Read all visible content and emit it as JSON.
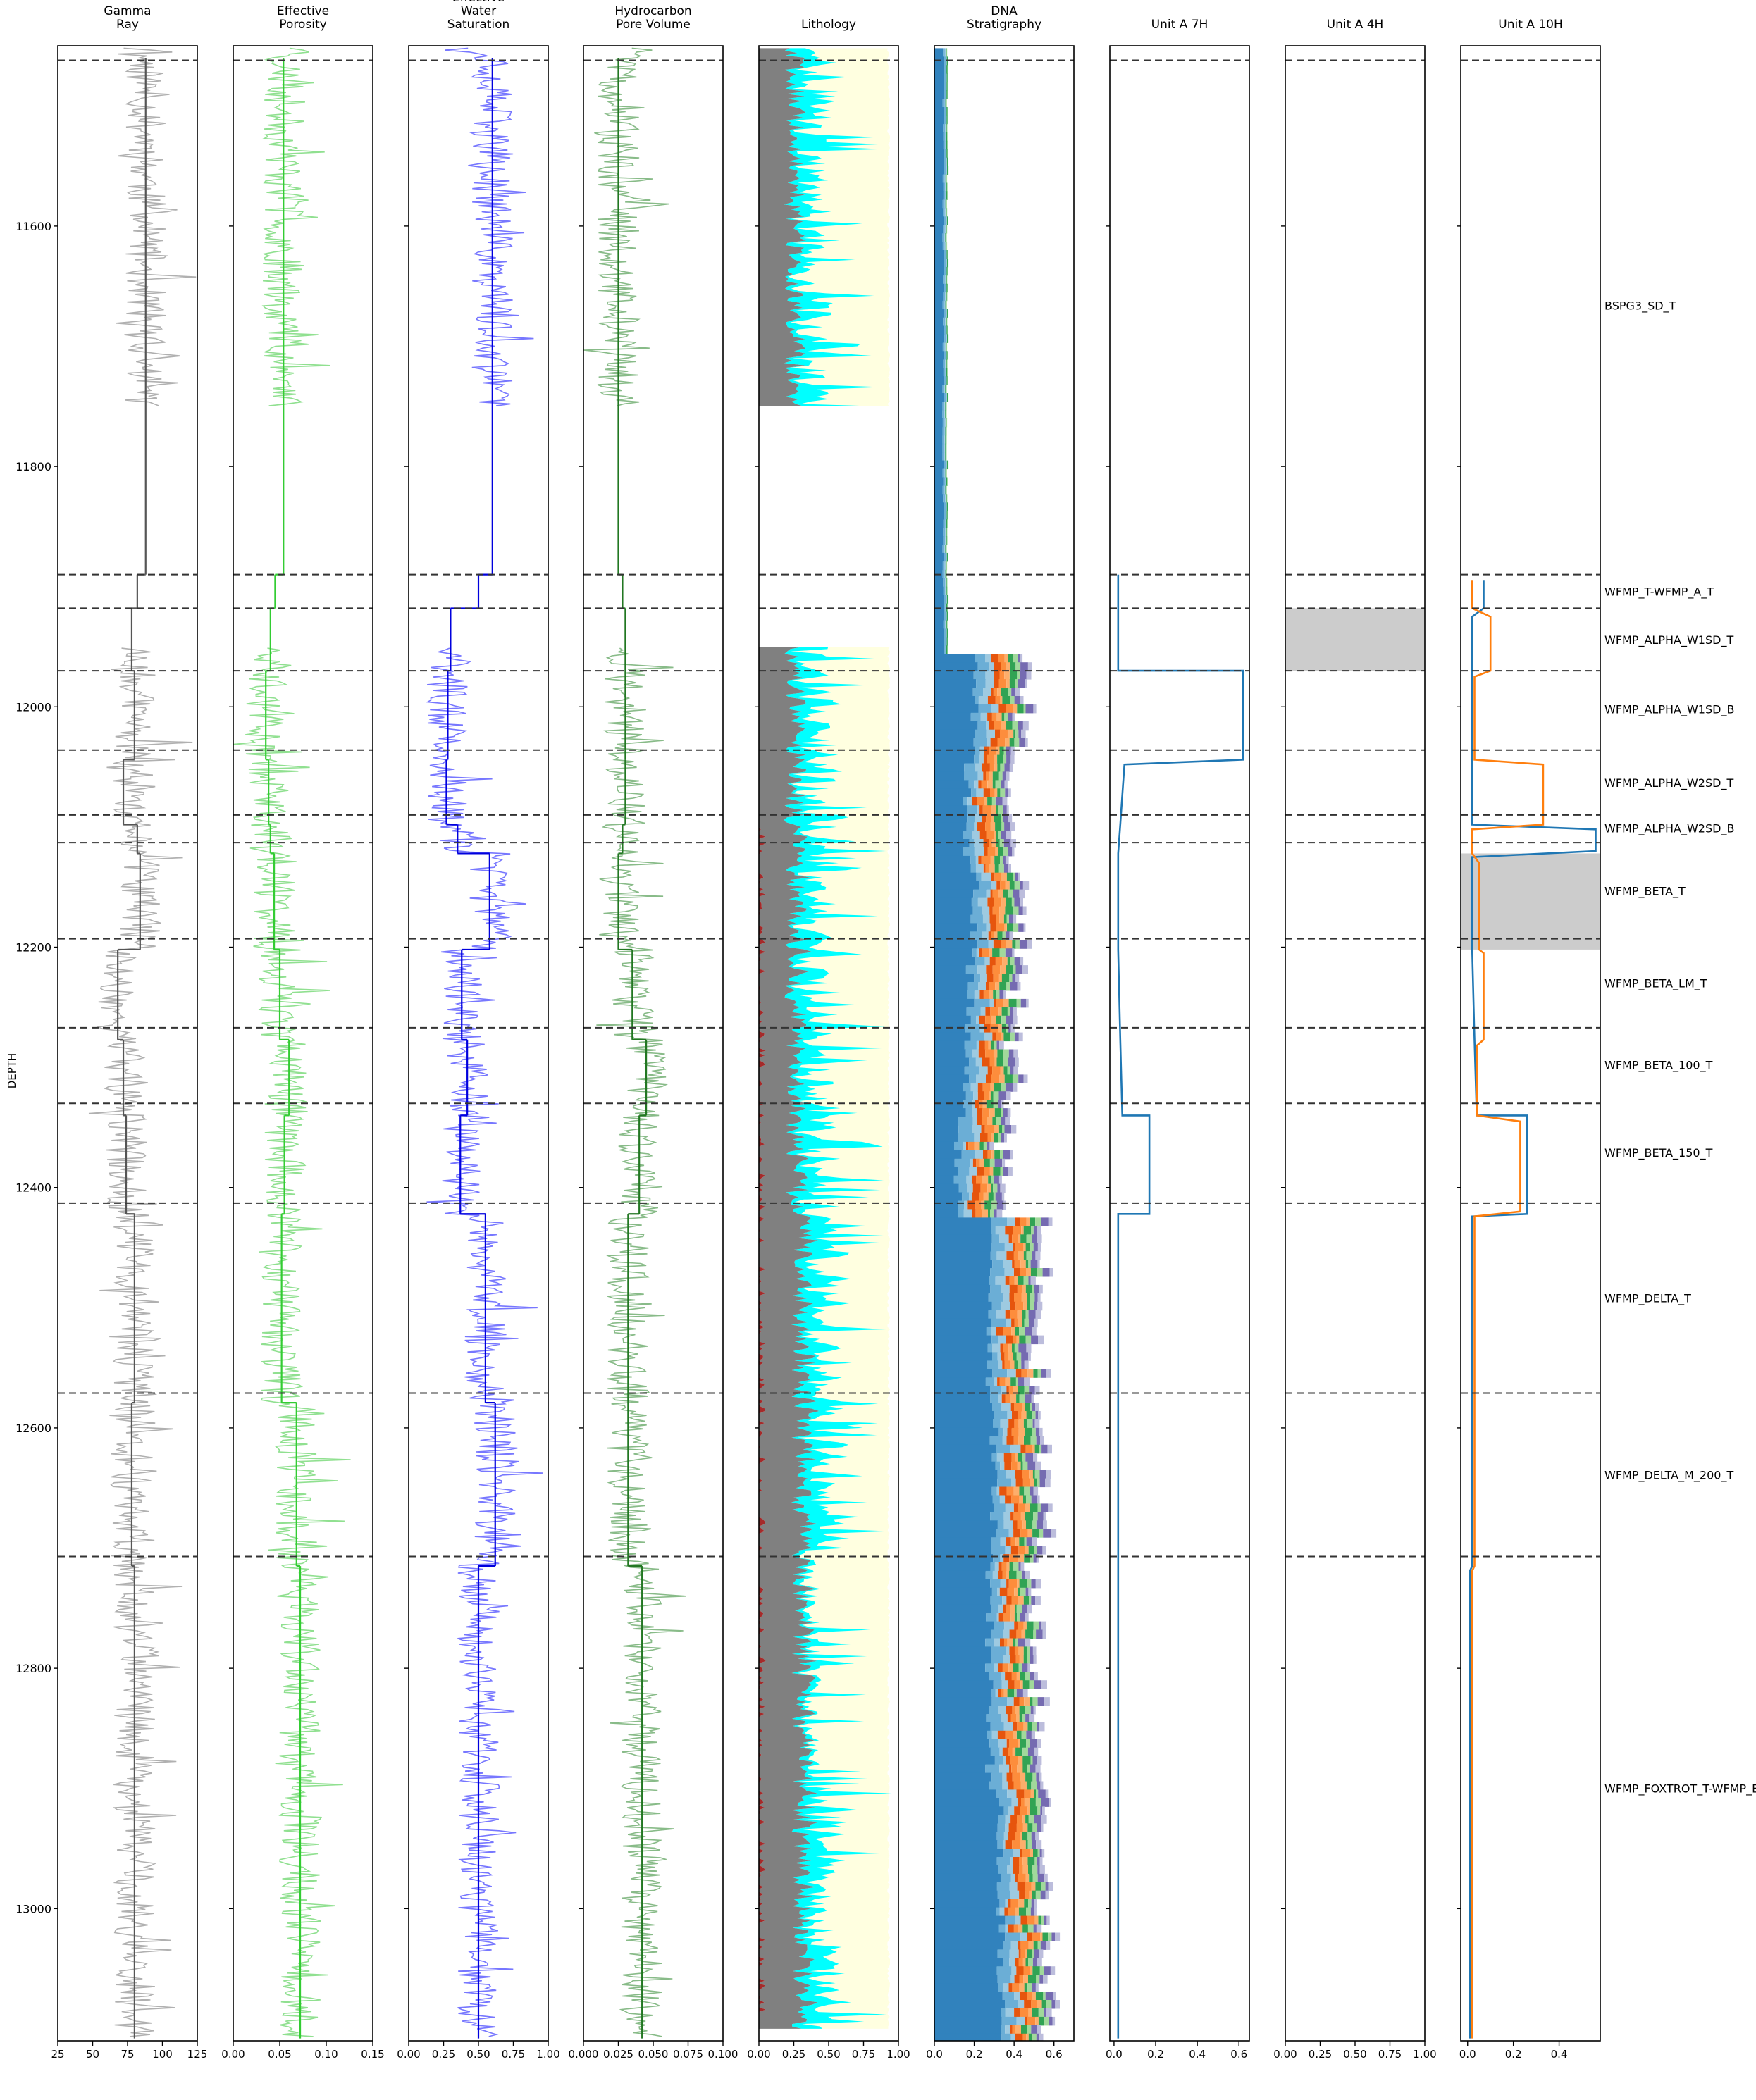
{
  "chart_data": {
    "type": "well-log",
    "y_axis": {
      "label": "DEPTH",
      "range": [
        11450,
        13110
      ],
      "ticks": [
        11600,
        11800,
        12000,
        12200,
        12400,
        12600,
        12800,
        13000
      ],
      "inverted": true
    },
    "tracks": [
      {
        "title": [
          "Gamma",
          "Ray"
        ],
        "xlim": [
          25,
          125
        ],
        "xticks": [
          25,
          50,
          75,
          100,
          125
        ],
        "xtick_labels": [
          "25",
          "50",
          "75",
          "100",
          "125"
        ],
        "kind": "curve",
        "curve_color": "#b0b0b0",
        "mean_color": "#555555",
        "seed": 11,
        "gaps": [
          [
            11750,
            11950
          ]
        ],
        "means": [
          [
            11460,
            11890,
            88
          ],
          [
            11890,
            11918,
            82
          ],
          [
            11918,
            11970,
            78
          ],
          [
            11970,
            12044,
            80
          ],
          [
            12044,
            12098,
            72
          ],
          [
            12098,
            12122,
            82
          ],
          [
            12122,
            12202,
            84
          ],
          [
            12202,
            12277,
            68
          ],
          [
            12277,
            12340,
            72
          ],
          [
            12340,
            12422,
            74
          ],
          [
            12422,
            12579,
            80
          ],
          [
            12579,
            12715,
            78
          ],
          [
            12715,
            13108,
            80
          ]
        ]
      },
      {
        "title": [
          "Effective",
          "Porosity"
        ],
        "xlim": [
          0,
          0.15
        ],
        "xticks": [
          0,
          0.05,
          0.1,
          0.15
        ],
        "xtick_labels": [
          "0.00",
          "0.05",
          "0.10",
          "0.15"
        ],
        "kind": "curve",
        "curve_color": "#90e090",
        "mean_color": "#33cc33",
        "seed": 23,
        "gaps": [
          [
            11750,
            11950
          ]
        ],
        "means": [
          [
            11460,
            11890,
            0.054
          ],
          [
            11890,
            11918,
            0.045
          ],
          [
            11918,
            11970,
            0.04
          ],
          [
            11970,
            12044,
            0.035
          ],
          [
            12044,
            12098,
            0.038
          ],
          [
            12098,
            12122,
            0.04
          ],
          [
            12122,
            12202,
            0.044
          ],
          [
            12202,
            12277,
            0.05
          ],
          [
            12277,
            12340,
            0.06
          ],
          [
            12340,
            12422,
            0.055
          ],
          [
            12422,
            12579,
            0.052
          ],
          [
            12579,
            12715,
            0.068
          ],
          [
            12715,
            13108,
            0.072
          ]
        ]
      },
      {
        "title": [
          "Effective",
          "Water",
          "Saturation"
        ],
        "xlim": [
          0,
          1
        ],
        "xticks": [
          0,
          0.25,
          0.5,
          0.75,
          1
        ],
        "xtick_labels": [
          "0.00",
          "0.25",
          "0.50",
          "0.75",
          "1.00"
        ],
        "kind": "curve",
        "curve_color": "#7777ff",
        "mean_color": "#0000dd",
        "seed": 37,
        "gaps": [
          [
            11750,
            11950
          ]
        ],
        "means": [
          [
            11460,
            11890,
            0.6
          ],
          [
            11890,
            11918,
            0.5
          ],
          [
            11918,
            11970,
            0.3
          ],
          [
            11970,
            12044,
            0.28
          ],
          [
            12044,
            12098,
            0.27
          ],
          [
            12098,
            12122,
            0.35
          ],
          [
            12122,
            12202,
            0.58
          ],
          [
            12202,
            12277,
            0.38
          ],
          [
            12277,
            12340,
            0.42
          ],
          [
            12340,
            12422,
            0.37
          ],
          [
            12422,
            12579,
            0.55
          ],
          [
            12579,
            12715,
            0.62
          ],
          [
            12715,
            13108,
            0.5
          ]
        ]
      },
      {
        "title": [
          "Hydrocarbon",
          "Pore Volume"
        ],
        "xlim": [
          0,
          0.1
        ],
        "xticks": [
          0,
          0.025,
          0.05,
          0.075,
          0.1
        ],
        "xtick_labels": [
          "0.000",
          "0.025",
          "0.050",
          "0.075",
          "0.100"
        ],
        "kind": "curve",
        "curve_color": "#88bb88",
        "mean_color": "#227722",
        "seed": 51,
        "gaps": [
          [
            11750,
            11950
          ]
        ],
        "means": [
          [
            11460,
            11890,
            0.025
          ],
          [
            11890,
            11918,
            0.028
          ],
          [
            11918,
            11970,
            0.03
          ],
          [
            11970,
            12044,
            0.03
          ],
          [
            12044,
            12098,
            0.03
          ],
          [
            12098,
            12122,
            0.028
          ],
          [
            12122,
            12202,
            0.025
          ],
          [
            12202,
            12277,
            0.035
          ],
          [
            12277,
            12340,
            0.045
          ],
          [
            12340,
            12422,
            0.04
          ],
          [
            12422,
            12579,
            0.032
          ],
          [
            12579,
            12715,
            0.032
          ],
          [
            12715,
            13108,
            0.042
          ]
        ]
      },
      {
        "title": [
          "Lithology"
        ],
        "xlim": [
          0,
          1
        ],
        "xticks": [
          0,
          0.25,
          0.5,
          0.75,
          1
        ],
        "xtick_labels": [
          "0.00",
          "0.25",
          "0.50",
          "0.75",
          "1.00"
        ],
        "kind": "lithology",
        "seed": 67,
        "gaps": [
          [
            11750,
            11950
          ]
        ],
        "colors": {
          "shale": "#808080",
          "carbonate": "#a52a2a",
          "silt": "#00ffff",
          "sand": "#ffffe0"
        }
      },
      {
        "title": [
          "DNA",
          "Stratigraphy"
        ],
        "xlim": [
          0,
          0.7
        ],
        "xticks": [
          0,
          0.2,
          0.4,
          0.6
        ],
        "xtick_labels": [
          "0.0",
          "0.2",
          "0.4",
          "0.6"
        ],
        "kind": "dna",
        "seed": 83,
        "colors": [
          "#3182bd",
          "#6baed6",
          "#9ecae1",
          "#e6550d",
          "#fd8d3c",
          "#fdae6b",
          "#31a354",
          "#a1d99b",
          "#756bb1",
          "#bcbddc"
        ],
        "base": [
          [
            11460,
            11950,
            0.04
          ],
          [
            11950,
            12044,
            0.2
          ],
          [
            12044,
            12122,
            0.16
          ],
          [
            12122,
            12202,
            0.2
          ],
          [
            12202,
            12277,
            0.18
          ],
          [
            12277,
            12340,
            0.15
          ],
          [
            12340,
            12422,
            0.12
          ],
          [
            12422,
            12579,
            0.27
          ],
          [
            12579,
            12715,
            0.3
          ],
          [
            12715,
            12900,
            0.28
          ],
          [
            12900,
            13108,
            0.33
          ]
        ]
      },
      {
        "title": [
          "Unit A 7H"
        ],
        "xlim": [
          -0.02,
          0.65
        ],
        "xticks": [
          0,
          0.2,
          0.4,
          0.6
        ],
        "xtick_labels": [
          "0.0",
          "0.2",
          "0.4",
          "0.6"
        ],
        "kind": "step",
        "lines": [
          {
            "color": "#1f77b4",
            "points": [
              [
                11890,
                0.02
              ],
              [
                11970,
                0.02
              ],
              [
                11970,
                0.62
              ],
              [
                12044,
                0.62
              ],
              [
                12048,
                0.05
              ],
              [
                12098,
                0.03
              ],
              [
                12122,
                0.02
              ],
              [
                12202,
                0.02
              ],
              [
                12277,
                0.03
              ],
              [
                12340,
                0.04
              ],
              [
                12340,
                0.17
              ],
              [
                12422,
                0.17
              ],
              [
                12422,
                0.02
              ],
              [
                12715,
                0.02
              ],
              [
                12719,
                0.02
              ],
              [
                13108,
                0.02
              ]
            ]
          }
        ],
        "shades": []
      },
      {
        "title": [
          "Unit A 4H"
        ],
        "xlim": [
          0,
          1
        ],
        "xticks": [
          0,
          0.25,
          0.5,
          0.75,
          1
        ],
        "xtick_labels": [
          "0.00",
          "0.25",
          "0.50",
          "0.75",
          "1.00"
        ],
        "kind": "step",
        "lines": [],
        "shades": [
          [
            11918,
            11970
          ]
        ]
      },
      {
        "title": [
          "Unit A 10H"
        ],
        "xlim": [
          -0.03,
          0.58
        ],
        "xticks": [
          0,
          0.2,
          0.4
        ],
        "xtick_labels": [
          "0.0",
          "0.2",
          "0.4"
        ],
        "kind": "step",
        "lines": [
          {
            "color": "#1f77b4",
            "points": [
              [
                11895,
                0.07
              ],
              [
                11918,
                0.07
              ],
              [
                11925,
                0.02
              ],
              [
                11970,
                0.02
              ],
              [
                12044,
                0.02
              ],
              [
                12098,
                0.02
              ],
              [
                12102,
                0.56
              ],
              [
                12120,
                0.56
              ],
              [
                12125,
                0.02
              ],
              [
                12202,
                0.02
              ],
              [
                12277,
                0.03
              ],
              [
                12340,
                0.04
              ],
              [
                12340,
                0.26
              ],
              [
                12422,
                0.26
              ],
              [
                12424,
                0.02
              ],
              [
                12715,
                0.02
              ],
              [
                12719,
                0.01
              ],
              [
                13108,
                0.01
              ]
            ]
          },
          {
            "color": "#ff7f0e",
            "points": [
              [
                11895,
                0.02
              ],
              [
                11918,
                0.02
              ],
              [
                11925,
                0.1
              ],
              [
                11970,
                0.1
              ],
              [
                11975,
                0.03
              ],
              [
                12044,
                0.03
              ],
              [
                12048,
                0.33
              ],
              [
                12098,
                0.33
              ],
              [
                12102,
                0.02
              ],
              [
                12122,
                0.02
              ],
              [
                12130,
                0.05
              ],
              [
                12202,
                0.05
              ],
              [
                12205,
                0.07
              ],
              [
                12277,
                0.07
              ],
              [
                12282,
                0.04
              ],
              [
                12340,
                0.04
              ],
              [
                12345,
                0.23
              ],
              [
                12420,
                0.23
              ],
              [
                12424,
                0.03
              ],
              [
                12715,
                0.03
              ],
              [
                12719,
                0.02
              ],
              [
                13108,
                0.02
              ]
            ]
          }
        ],
        "shades": [
          [
            12122,
            12202
          ]
        ]
      }
    ],
    "formation_tops": [
      11462,
      11890,
      11918,
      11970,
      12036,
      12090,
      12113,
      12193,
      12267,
      12330,
      12413,
      12571,
      12707
    ],
    "zone_labels": [
      {
        "name": "BSPG3_SD_T",
        "depth": 11666
      },
      {
        "name": "WFMP_T-WFMP_A_T",
        "depth": 11904
      },
      {
        "name": "WFMP_ALPHA_W1SD_T",
        "depth": 11944
      },
      {
        "name": "WFMP_ALPHA_W1SD_B",
        "depth": 12002
      },
      {
        "name": "WFMP_ALPHA_W2SD_T",
        "depth": 12063
      },
      {
        "name": "WFMP_ALPHA_W2SD_B",
        "depth": 12101
      },
      {
        "name": "WFMP_BETA_T",
        "depth": 12153
      },
      {
        "name": "WFMP_BETA_LM_T",
        "depth": 12230
      },
      {
        "name": "WFMP_BETA_100_T",
        "depth": 12298
      },
      {
        "name": "WFMP_BETA_150_T",
        "depth": 12371
      },
      {
        "name": "WFMP_DELTA_T",
        "depth": 12492
      },
      {
        "name": "WFMP_DELTA_M_200_T",
        "depth": 12639
      },
      {
        "name": "WFMP_FOXTROT_T-WFMP_B_T",
        "depth": 12900
      }
    ]
  }
}
